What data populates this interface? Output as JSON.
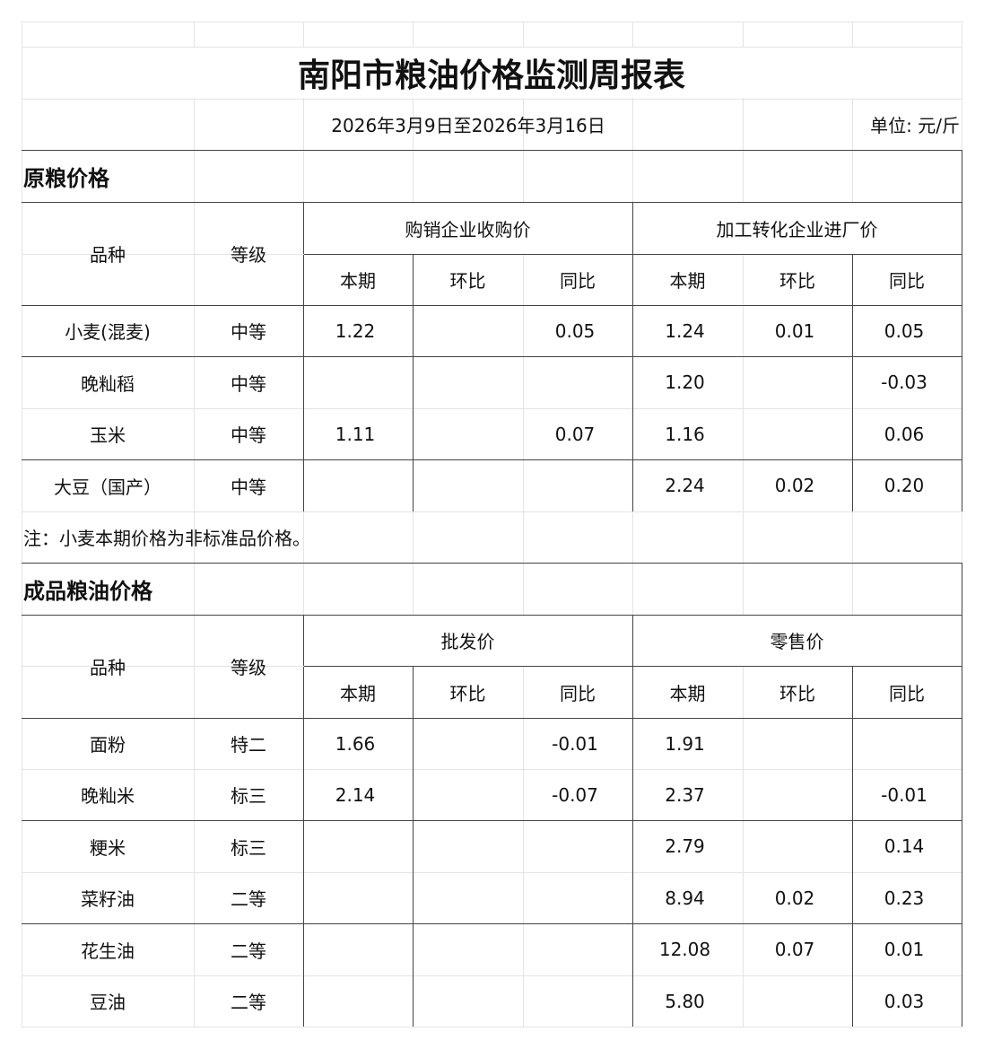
{
  "title": "南阳市粮油价格监测周报表",
  "date_range": "2026年3月9日至2026年3月16日",
  "unit": "单位: 元/斤",
  "raw_grain": {
    "section_title": "原粮价格",
    "col_variety": "品种",
    "col_grade": "等级",
    "group1": "购销企业收购价",
    "group2": "加工转化企业进厂价",
    "sub_headers": [
      "本期",
      "环比",
      "同比",
      "本期",
      "环比",
      "同比"
    ],
    "rows": [
      {
        "variety": "小麦(混麦)",
        "grade": "中等",
        "values": [
          "1.22",
          "",
          "0.05",
          "1.24",
          "0.01",
          "0.05"
        ]
      },
      {
        "variety": "晚籼稻",
        "grade": "中等",
        "values": [
          "",
          "",
          "",
          "1.20",
          "",
          "-0.03"
        ]
      },
      {
        "variety": "玉米",
        "grade": "中等",
        "values": [
          "1.11",
          "",
          "0.07",
          "1.16",
          "",
          "0.06"
        ]
      },
      {
        "variety": "大豆（国产）",
        "grade": "中等",
        "values": [
          "",
          "",
          "",
          "2.24",
          "0.02",
          "0.20"
        ]
      }
    ],
    "note": "注：小麦本期价格为非标准品价格。"
  },
  "finished": {
    "section_title": "成品粮油价格",
    "col_variety": "品种",
    "col_grade": "等级",
    "group1": "批发价",
    "group2": "零售价",
    "sub_headers": [
      "本期",
      "环比",
      "同比",
      "本期",
      "环比",
      "同比"
    ],
    "rows": [
      {
        "variety": "面粉",
        "grade": "特二",
        "values": [
          "1.66",
          "",
          "-0.01",
          "1.91",
          "",
          ""
        ]
      },
      {
        "variety": "晚籼米",
        "grade": "标三",
        "values": [
          "2.14",
          "",
          "-0.07",
          "2.37",
          "",
          "-0.01"
        ]
      },
      {
        "variety": "粳米",
        "grade": "标三",
        "values": [
          "",
          "",
          "",
          "2.79",
          "",
          "0.14"
        ]
      },
      {
        "variety": "菜籽油",
        "grade": "二等",
        "values": [
          "",
          "",
          "",
          "8.94",
          "0.02",
          "0.23"
        ]
      },
      {
        "variety": "花生油",
        "grade": "二等",
        "values": [
          "",
          "",
          "",
          "12.08",
          "0.07",
          "0.01"
        ]
      },
      {
        "variety": "豆油",
        "grade": "二等",
        "values": [
          "",
          "",
          "",
          "5.80",
          "",
          "0.03"
        ]
      }
    ]
  },
  "colors": {
    "grid_light": "#e4e4e4",
    "border_dark": "#444444",
    "text": "#111111"
  }
}
